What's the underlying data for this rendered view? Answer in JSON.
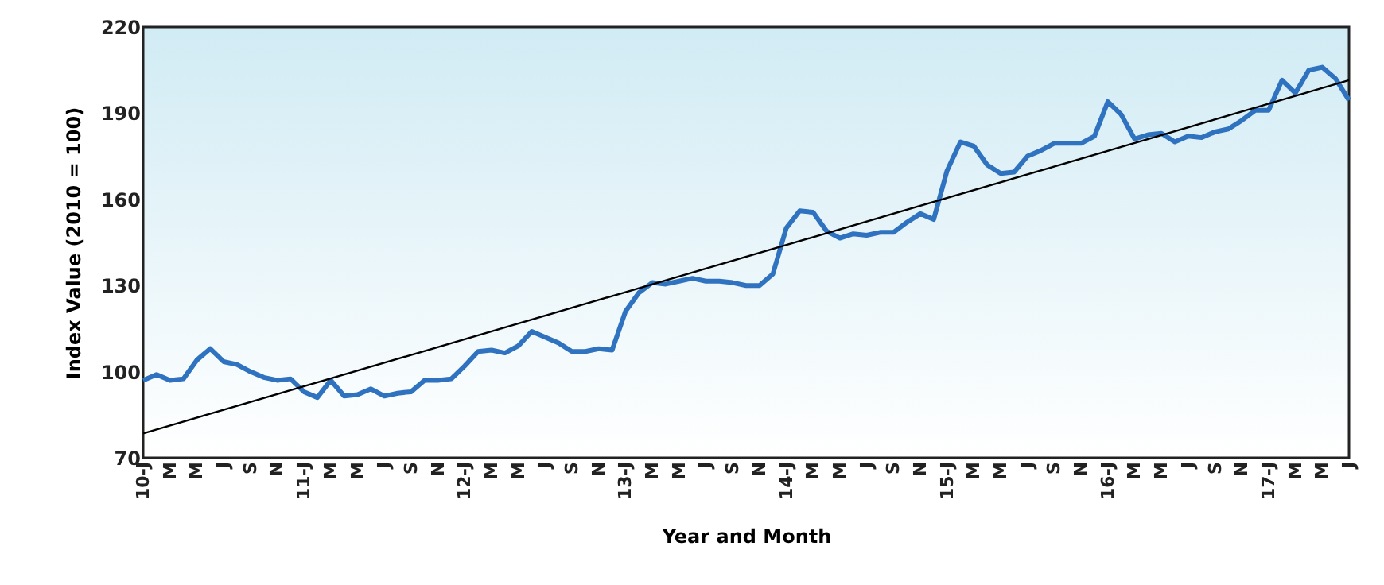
{
  "chart_data": {
    "type": "line",
    "xlabel": "Year and Month",
    "ylabel": "Index Value (2010 = 100)",
    "categories": [
      "10-J",
      null,
      "M",
      null,
      "M",
      null,
      "J",
      null,
      "S",
      null,
      "N",
      null,
      "11-J",
      null,
      "M",
      null,
      "M",
      null,
      "J",
      null,
      "S",
      null,
      "N",
      null,
      "12-J",
      null,
      "M",
      null,
      "M",
      null,
      "J",
      null,
      "S",
      null,
      "N",
      null,
      "13-J",
      null,
      "M",
      null,
      "M",
      null,
      "J",
      null,
      "S",
      null,
      "N",
      null,
      "14-J",
      null,
      "M",
      null,
      "M",
      null,
      "J",
      null,
      "S",
      null,
      "N",
      null,
      "15-J",
      null,
      "M",
      null,
      "M",
      null,
      "J",
      null,
      "S",
      null,
      "N",
      null,
      "16-J",
      null,
      "M",
      null,
      "M",
      null,
      "J",
      null,
      "S",
      null,
      "N",
      null,
      "17-J",
      null,
      "M",
      null,
      "M",
      null,
      "J"
    ],
    "series": [
      {
        "color": "#2f72bf",
        "values": [
          97,
          99,
          97,
          97.5,
          104,
          108,
          103.5,
          102.5,
          100,
          98,
          97,
          97.5,
          93,
          91,
          97,
          91.5,
          92,
          94,
          91.5,
          92.5,
          93,
          97,
          97,
          97.5,
          102,
          107,
          107.5,
          106.5,
          109,
          114,
          112,
          110,
          107,
          107,
          108,
          107.5,
          121,
          127.5,
          131,
          130.5,
          131.5,
          132.5,
          131.5,
          131.5,
          131,
          130,
          130,
          134,
          150,
          156,
          155.5,
          149,
          146.5,
          148,
          147.5,
          148.5,
          148.5,
          152,
          155,
          153,
          170,
          180,
          178.5,
          172,
          169,
          169.5,
          175,
          177,
          179.5,
          179.5,
          179.5,
          182,
          194,
          189.5,
          181,
          182.5,
          183,
          180,
          182,
          181.5,
          183.5,
          184.5,
          187.5,
          191,
          191,
          201.5,
          197,
          205,
          206,
          202,
          194.5
        ]
      },
      {
        "type": "line",
        "color": "#000000",
        "values": [
          78.5,
          null,
          null,
          null,
          null,
          null,
          null,
          null,
          null,
          null,
          null,
          null,
          null,
          null,
          null,
          null,
          null,
          null,
          null,
          null,
          null,
          null,
          null,
          null,
          null,
          null,
          null,
          null,
          null,
          null,
          null,
          null,
          null,
          null,
          null,
          null,
          null,
          null,
          null,
          null,
          null,
          null,
          null,
          null,
          null,
          null,
          null,
          null,
          null,
          null,
          null,
          null,
          null,
          null,
          null,
          null,
          null,
          null,
          null,
          null,
          null,
          null,
          null,
          null,
          null,
          null,
          null,
          null,
          null,
          null,
          null,
          null,
          null,
          null,
          null,
          null,
          null,
          null,
          null,
          null,
          null,
          null,
          null,
          null,
          null,
          null,
          null,
          null,
          null,
          null,
          201.5
        ]
      }
    ],
    "ylim": [
      70,
      220
    ],
    "yticks": [
      70,
      100,
      130,
      160,
      190,
      220
    ],
    "grid": false
  }
}
